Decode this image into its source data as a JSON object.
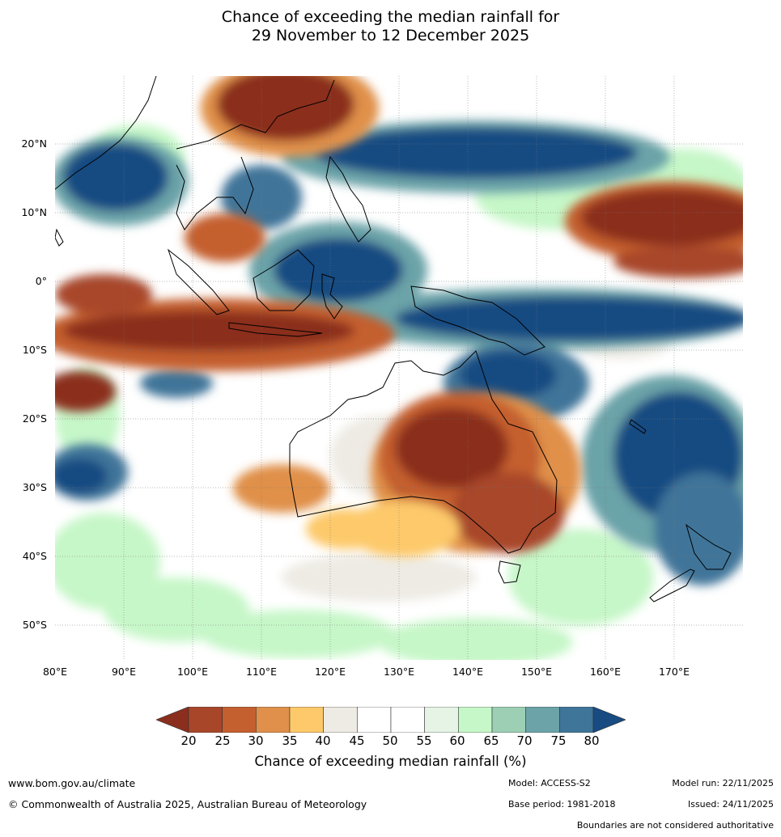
{
  "title": {
    "line1": "Chance of exceeding the median rainfall for",
    "line2": "29 November to 12 December 2025"
  },
  "map": {
    "lat_labels": [
      "20°N",
      "10°N",
      "0°",
      "10°S",
      "20°S",
      "30°S",
      "40°S",
      "50°S"
    ],
    "lon_labels": [
      "80°E",
      "90°E",
      "100°E",
      "110°E",
      "120°E",
      "130°E",
      "140°E",
      "150°E",
      "160°E",
      "170°E"
    ]
  },
  "colorbar": {
    "ticks": [
      "20",
      "25",
      "30",
      "35",
      "40",
      "45",
      "50",
      "55",
      "60",
      "65",
      "70",
      "75",
      "80"
    ],
    "colors": [
      "#8b2e1e",
      "#a8462a",
      "#c45f2f",
      "#e0904a",
      "#fdc96a",
      "#eeebe4",
      "#ffffff",
      "#ffffff",
      "#e6f4e6",
      "#c6f7c8",
      "#9ccfb4",
      "#6ba3a8",
      "#3f7599",
      "#174b82"
    ],
    "label": "Chance of exceeding median rainfall (%)"
  },
  "footer": {
    "website": "www.bom.gov.au/climate",
    "copyright": "© Commonwealth of Australia 2025, Australian Bureau of Meteorology",
    "model": "Model: ACCESS-S2",
    "base_period": "Base period: 1981-2018",
    "model_run": "Model run: 22/11/2025",
    "issued": "Issued: 24/11/2025",
    "disclaimer": "Boundaries are not considered authoritative"
  }
}
